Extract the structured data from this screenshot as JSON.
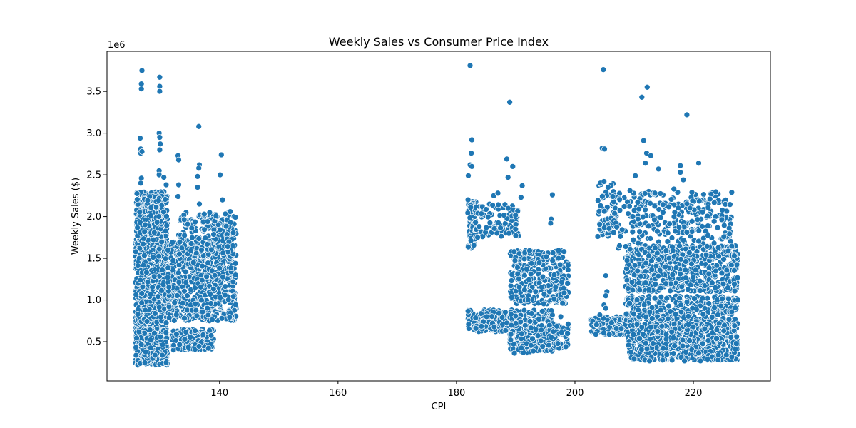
{
  "chart_data": {
    "type": "scatter",
    "title": "Weekly Sales vs Consumer Price Index",
    "xlabel": "CPI",
    "ylabel": "Weekly Sales ($)",
    "y_offset_label": "1e6",
    "xlim": [
      121,
      233
    ],
    "ylim": [
      0.03,
      3.98
    ],
    "y_scale_factor": 1000000,
    "xticks": [
      140,
      160,
      180,
      200,
      220
    ],
    "yticks": [
      0.5,
      1.0,
      1.5,
      2.0,
      2.5,
      3.0,
      3.5
    ],
    "ytick_labels": [
      "0.5",
      "1.0",
      "1.5",
      "2.0",
      "2.5",
      "3.0",
      "3.5"
    ],
    "grid": false,
    "marker_color": "#1f77b4",
    "points": [
      [
        126.9,
        3.75
      ],
      [
        126.8,
        3.59
      ],
      [
        126.8,
        3.53
      ],
      [
        129.9,
        3.67
      ],
      [
        129.9,
        3.56
      ],
      [
        129.9,
        3.5
      ],
      [
        126.6,
        2.94
      ],
      [
        129.8,
        3.0
      ],
      [
        129.9,
        2.95
      ],
      [
        130.0,
        2.87
      ],
      [
        129.9,
        2.8
      ],
      [
        126.7,
        2.81
      ],
      [
        126.7,
        2.76
      ],
      [
        126.9,
        2.78
      ],
      [
        133.0,
        2.73
      ],
      [
        133.1,
        2.68
      ],
      [
        136.5,
        3.08
      ],
      [
        140.3,
        2.74
      ],
      [
        136.6,
        2.62
      ],
      [
        136.5,
        2.58
      ],
      [
        136.3,
        2.48
      ],
      [
        140.1,
        2.5
      ],
      [
        129.8,
        2.55
      ],
      [
        129.8,
        2.5
      ],
      [
        130.6,
        2.47
      ],
      [
        126.8,
        2.46
      ],
      [
        126.7,
        2.4
      ],
      [
        131.0,
        2.38
      ],
      [
        133.1,
        2.38
      ],
      [
        136.3,
        2.35
      ],
      [
        133.0,
        2.24
      ],
      [
        140.5,
        2.2
      ],
      [
        136.6,
        2.15
      ],
      [
        141.8,
        2.06
      ],
      [
        139.4,
        2.01
      ],
      [
        138.0,
        1.94
      ],
      [
        182.3,
        3.81
      ],
      [
        189.0,
        3.37
      ],
      [
        182.6,
        2.92
      ],
      [
        182.5,
        2.76
      ],
      [
        182.3,
        2.62
      ],
      [
        182.6,
        2.6
      ],
      [
        188.5,
        2.69
      ],
      [
        189.5,
        2.6
      ],
      [
        182.0,
        2.49
      ],
      [
        188.7,
        2.47
      ],
      [
        191.1,
        2.37
      ],
      [
        196.2,
        2.26
      ],
      [
        190.9,
        2.23
      ],
      [
        186.3,
        2.25
      ],
      [
        187.0,
        2.28
      ],
      [
        196.0,
        1.97
      ],
      [
        195.9,
        1.92
      ],
      [
        182.4,
        2.11
      ],
      [
        204.8,
        3.76
      ],
      [
        211.3,
        3.43
      ],
      [
        212.2,
        3.55
      ],
      [
        218.9,
        3.22
      ],
      [
        211.6,
        2.91
      ],
      [
        204.6,
        2.82
      ],
      [
        205.0,
        2.81
      ],
      [
        212.1,
        2.76
      ],
      [
        212.8,
        2.73
      ],
      [
        220.9,
        2.64
      ],
      [
        217.8,
        2.61
      ],
      [
        211.9,
        2.64
      ],
      [
        210.2,
        2.49
      ],
      [
        214.1,
        2.57
      ],
      [
        204.3,
        2.4
      ],
      [
        204.9,
        2.42
      ],
      [
        205.6,
        2.35
      ],
      [
        206.4,
        2.24
      ],
      [
        209.3,
        2.31
      ],
      [
        217.8,
        2.53
      ],
      [
        218.3,
        2.44
      ],
      [
        222.8,
        2.21
      ],
      [
        216.7,
        2.33
      ],
      [
        213.5,
        2.28
      ],
      [
        205.2,
        1.29
      ],
      [
        205.4,
        1.1
      ],
      [
        205.2,
        1.05
      ],
      [
        204.9,
        0.94
      ],
      [
        205.2,
        0.9
      ],
      [
        196.2,
        0.82
      ],
      [
        197.6,
        0.8
      ],
      [
        204.8,
        0.78
      ],
      [
        204.2,
        0.82
      ],
      [
        126.2,
        0.22
      ],
      [
        126.6,
        0.24
      ],
      [
        127.4,
        0.25
      ],
      [
        129.9,
        0.23
      ],
      [
        130.4,
        0.24
      ],
      [
        131.0,
        0.25
      ],
      [
        211.8,
        0.28
      ],
      [
        212.6,
        0.27
      ],
      [
        214.8,
        0.28
      ],
      [
        216.4,
        0.28
      ],
      [
        218.5,
        0.27
      ],
      [
        221.2,
        0.27
      ],
      [
        222.4,
        0.29
      ],
      [
        227.1,
        0.41
      ],
      [
        227.3,
        0.56
      ]
    ],
    "clusters": [
      {
        "x": [
          125.8,
          131.2
        ],
        "y": [
          0.55,
          2.3
        ],
        "n": 900
      },
      {
        "x": [
          125.8,
          131.2
        ],
        "y": [
          0.22,
          0.65
        ],
        "n": 450
      },
      {
        "x": [
          131.2,
          142.8
        ],
        "y": [
          0.75,
          1.72
        ],
        "n": 700
      },
      {
        "x": [
          132.0,
          139.0
        ],
        "y": [
          0.4,
          0.65
        ],
        "n": 180
      },
      {
        "x": [
          133.0,
          142.8
        ],
        "y": [
          1.55,
          2.05
        ],
        "n": 160
      },
      {
        "x": [
          181.9,
          183.3
        ],
        "y": [
          1.62,
          2.2
        ],
        "n": 60
      },
      {
        "x": [
          181.9,
          189.0
        ],
        "y": [
          0.62,
          0.88
        ],
        "n": 160
      },
      {
        "x": [
          183.0,
          190.5
        ],
        "y": [
          1.75,
          2.15
        ],
        "n": 90
      },
      {
        "x": [
          189.0,
          196.2
        ],
        "y": [
          0.36,
          0.88
        ],
        "n": 260
      },
      {
        "x": [
          189.0,
          199.0
        ],
        "y": [
          0.95,
          1.6
        ],
        "n": 300
      },
      {
        "x": [
          195.5,
          199.0
        ],
        "y": [
          0.42,
          0.72
        ],
        "n": 90
      },
      {
        "x": [
          202.7,
          209.0
        ],
        "y": [
          0.58,
          0.8
        ],
        "n": 180
      },
      {
        "x": [
          203.8,
          207.0
        ],
        "y": [
          1.75,
          2.4
        ],
        "n": 60
      },
      {
        "x": [
          206.5,
          226.5
        ],
        "y": [
          1.6,
          2.3
        ],
        "n": 280
      },
      {
        "x": [
          208.5,
          227.5
        ],
        "y": [
          1.1,
          1.65
        ],
        "n": 600
      },
      {
        "x": [
          208.5,
          227.5
        ],
        "y": [
          0.7,
          1.05
        ],
        "n": 350
      },
      {
        "x": [
          209.0,
          227.5
        ],
        "y": [
          0.28,
          0.72
        ],
        "n": 700
      }
    ]
  }
}
